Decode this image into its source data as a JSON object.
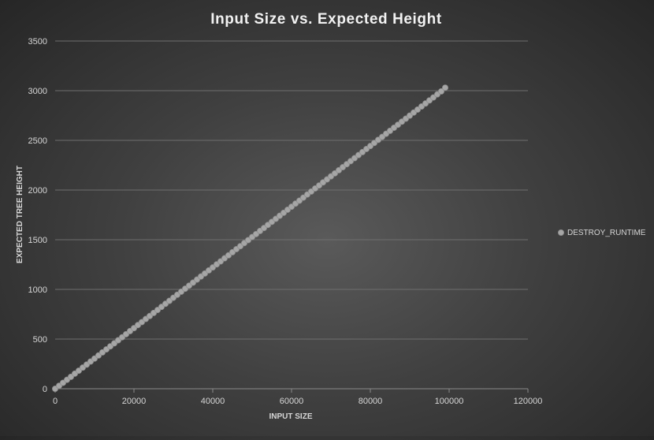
{
  "chart_data": {
    "type": "scatter",
    "title": "Input Size vs. Expected Height",
    "xlabel": "INPUT SIZE",
    "ylabel": "EXPECTED TREE HEIGHT",
    "xlim": [
      0,
      120000
    ],
    "ylim": [
      0,
      3500
    ],
    "x_ticks": [
      "0",
      "20000",
      "40000",
      "60000",
      "80000",
      "100000",
      "120000"
    ],
    "y_ticks": [
      "0",
      "500",
      "1000",
      "1500",
      "2000",
      "2500",
      "3000",
      "3500"
    ],
    "grid": true,
    "legend": "right",
    "colors": {
      "marker": "#a6a6a6",
      "grid": "#6e6e6e"
    },
    "series": [
      {
        "name": "DESTROY_RUNTIME",
        "points": [
          [
            0,
            0
          ],
          [
            1000,
            30
          ],
          [
            2000,
            60
          ],
          [
            3000,
            90
          ],
          [
            4000,
            120
          ],
          [
            5000,
            152
          ],
          [
            6000,
            182
          ],
          [
            7000,
            213
          ],
          [
            8000,
            243
          ],
          [
            9000,
            274
          ],
          [
            10000,
            304
          ],
          [
            11000,
            335
          ],
          [
            12000,
            366
          ],
          [
            13000,
            396
          ],
          [
            14000,
            427
          ],
          [
            15000,
            457
          ],
          [
            16000,
            488
          ],
          [
            17000,
            518
          ],
          [
            18000,
            549
          ],
          [
            19000,
            580
          ],
          [
            20000,
            610
          ],
          [
            21000,
            641
          ],
          [
            22000,
            671
          ],
          [
            23000,
            702
          ],
          [
            24000,
            732
          ],
          [
            25000,
            763
          ],
          [
            26000,
            793
          ],
          [
            27000,
            824
          ],
          [
            28000,
            855
          ],
          [
            29000,
            885
          ],
          [
            30000,
            916
          ],
          [
            31000,
            946
          ],
          [
            32000,
            977
          ],
          [
            33000,
            1007
          ],
          [
            34000,
            1038
          ],
          [
            35000,
            1068
          ],
          [
            36000,
            1099
          ],
          [
            37000,
            1130
          ],
          [
            38000,
            1160
          ],
          [
            39000,
            1191
          ],
          [
            40000,
            1221
          ],
          [
            41000,
            1252
          ],
          [
            42000,
            1282
          ],
          [
            43000,
            1313
          ],
          [
            44000,
            1343
          ],
          [
            45000,
            1374
          ],
          [
            46000,
            1405
          ],
          [
            47000,
            1435
          ],
          [
            48000,
            1466
          ],
          [
            49000,
            1496
          ],
          [
            50000,
            1527
          ],
          [
            51000,
            1557
          ],
          [
            52000,
            1588
          ],
          [
            53000,
            1618
          ],
          [
            54000,
            1649
          ],
          [
            55000,
            1680
          ],
          [
            56000,
            1710
          ],
          [
            57000,
            1741
          ],
          [
            58000,
            1771
          ],
          [
            59000,
            1802
          ],
          [
            60000,
            1832
          ],
          [
            61000,
            1863
          ],
          [
            62000,
            1893
          ],
          [
            63000,
            1924
          ],
          [
            64000,
            1955
          ],
          [
            65000,
            1985
          ],
          [
            66000,
            2016
          ],
          [
            67000,
            2046
          ],
          [
            68000,
            2077
          ],
          [
            69000,
            2107
          ],
          [
            70000,
            2138
          ],
          [
            71000,
            2168
          ],
          [
            72000,
            2199
          ],
          [
            73000,
            2230
          ],
          [
            74000,
            2260
          ],
          [
            75000,
            2291
          ],
          [
            76000,
            2321
          ],
          [
            77000,
            2352
          ],
          [
            78000,
            2382
          ],
          [
            79000,
            2413
          ],
          [
            80000,
            2443
          ],
          [
            81000,
            2474
          ],
          [
            82000,
            2505
          ],
          [
            83000,
            2535
          ],
          [
            84000,
            2566
          ],
          [
            85000,
            2596
          ],
          [
            86000,
            2627
          ],
          [
            87000,
            2657
          ],
          [
            88000,
            2688
          ],
          [
            89000,
            2718
          ],
          [
            90000,
            2749
          ],
          [
            91000,
            2780
          ],
          [
            92000,
            2810
          ],
          [
            93000,
            2841
          ],
          [
            94000,
            2871
          ],
          [
            95000,
            2902
          ],
          [
            96000,
            2932
          ],
          [
            97000,
            2963
          ],
          [
            98000,
            2993
          ],
          [
            99000,
            3030
          ]
        ]
      }
    ]
  }
}
